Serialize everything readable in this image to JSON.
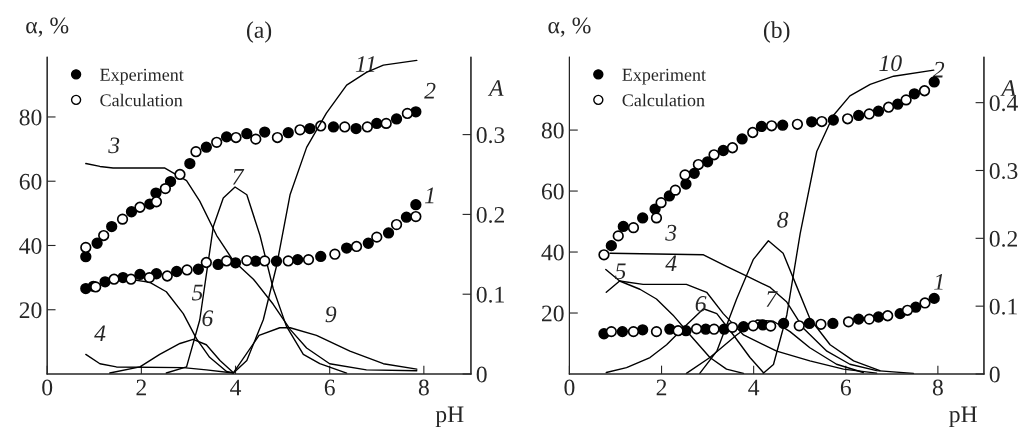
{
  "chart_data": [
    {
      "type": "line",
      "title": "(a)",
      "xlabel": "pH",
      "ylabel": "α, %",
      "y2label": "A",
      "xlim": [
        0,
        9
      ],
      "xticks": [
        0,
        2,
        4,
        6,
        8
      ],
      "ylim": [
        0,
        98.6
      ],
      "yticks": [
        20,
        40,
        60,
        80
      ],
      "y2lim": [
        0,
        0.397
      ],
      "y2ticks": [
        0,
        0.1,
        0.2,
        0.3
      ],
      "legend": "top left",
      "grid": false,
      "series": [
        {
          "type": "scatter",
          "marker": "circle",
          "name": "Experiment",
          "color": "#000000",
          "x": [
            0.82,
            1.06,
            1.37,
            1.79,
            2.18,
            2.31,
            2.62,
            3.03,
            3.38,
            3.81,
            4.24,
            4.62,
            5.12,
            5.58,
            6.08,
            6.56,
            7.0,
            7.42,
            7.83
          ],
          "values": [
            36.5,
            40.7,
            45.9,
            50.5,
            52.9,
            56.3,
            59.9,
            65.5,
            70.6,
            73.8,
            74.8,
            75.3,
            75.1,
            76.4,
            76.9,
            76.4,
            78.0,
            79.4,
            81.6
          ]
        },
        {
          "type": "scatter",
          "marker": "circle",
          "name": "Calculation",
          "color": "#ffffff",
          "x": [
            0.82,
            1.2,
            1.6,
            1.97,
            2.32,
            2.51,
            2.82,
            3.16,
            3.6,
            4.01,
            4.43,
            4.89,
            5.37,
            5.81,
            6.32,
            6.8,
            7.2,
            7.65
          ],
          "values": [
            39.4,
            43.1,
            48.2,
            51.9,
            53.6,
            57.7,
            62.1,
            69.2,
            72.1,
            73.6,
            73.1,
            73.6,
            76.0,
            77.2,
            76.9,
            76.9,
            78.0,
            81.1
          ]
        },
        {
          "type": "scatter",
          "marker": "circle",
          "color": "#000000",
          "x": [
            0.82,
            0.98,
            1.23,
            1.61,
            1.97,
            2.32,
            2.75,
            3.21,
            3.63,
            4.0,
            4.43,
            4.87,
            5.32,
            5.81,
            6.36,
            6.82,
            7.25,
            7.63,
            7.83
          ],
          "values": [
            26.6,
            27.3,
            28.7,
            30.0,
            31.0,
            31.2,
            31.9,
            32.6,
            34.1,
            34.6,
            35.1,
            35.1,
            35.6,
            36.6,
            39.2,
            40.7,
            43.9,
            48.8,
            52.7
          ]
        },
        {
          "type": "scatter",
          "marker": "circle",
          "color": "#ffffff",
          "x": [
            1.03,
            1.42,
            1.78,
            2.17,
            2.55,
            2.97,
            3.38,
            3.81,
            4.24,
            4.62,
            5.12,
            5.55,
            6.11,
            6.57,
            7.0,
            7.42,
            7.83
          ],
          "values": [
            27.1,
            29.5,
            29.5,
            30.0,
            30.5,
            32.4,
            34.7,
            35.2,
            35.3,
            35.2,
            35.2,
            35.6,
            37.3,
            39.7,
            42.6,
            46.5,
            49.0
          ]
        },
        {
          "color": "#000000",
          "x": [
            0.82,
            1.12,
            1.4,
            2.5,
            2.96,
            3.24,
            3.6,
            3.95,
            4.38,
            4.8,
            5.16,
            5.51,
            6.0,
            6.78,
            7.85
          ],
          "values": [
            65.5,
            64.6,
            64.1,
            64.1,
            60.2,
            53.8,
            43.1,
            35.3,
            29.5,
            21.7,
            13.9,
            8.1,
            3.2,
            1.3,
            1.0
          ]
        },
        {
          "color": "#000000",
          "x": [
            0.82,
            1.12,
            1.47,
            2.89,
            3.38,
            3.95
          ],
          "values": [
            6.1,
            3.2,
            2.2,
            2.0,
            1.3,
            0.3
          ]
        },
        {
          "color": "#000000",
          "x": [
            1.76,
            2.18,
            2.53,
            2.89,
            3.17,
            3.45,
            3.81,
            3.95
          ],
          "values": [
            29.5,
            28.5,
            25.6,
            18.8,
            11.0,
            5.2,
            0.8,
            0.3
          ]
        },
        {
          "color": "#000000",
          "x": [
            1.33,
            1.97,
            2.39,
            2.82,
            3.1,
            3.38,
            3.67,
            3.95
          ],
          "values": [
            0.3,
            2.2,
            6.1,
            9.5,
            10.8,
            9.1,
            4.2,
            0.5
          ]
        },
        {
          "color": "#000000",
          "x": [
            2.53,
            2.96,
            3.24,
            3.53,
            3.74,
            3.99,
            4.24,
            4.52,
            4.8,
            5.08,
            5.44,
            5.79,
            6.36
          ],
          "values": [
            0.3,
            2.2,
            16.8,
            46,
            54.8,
            58.2,
            55.8,
            43.1,
            26.6,
            14.9,
            6.1,
            3.2,
            0.3
          ]
        },
        {
          "color": "#000000",
          "x": [
            3.95,
            4.5,
            4.94,
            5.16,
            5.72,
            6.43,
            7.14,
            7.85
          ],
          "values": [
            0.3,
            12,
            14.4,
            14.4,
            12,
            7.1,
            3.2,
            1.5
          ]
        },
        {
          "color": "#000000",
          "axis": "y2",
          "x": [
            3.95,
            4.24,
            4.59,
            4.87,
            5.16,
            5.51,
            5.93,
            6.36,
            6.78,
            7.14,
            7.85
          ],
          "values": [
            0.001,
            0.017,
            0.068,
            0.135,
            0.225,
            0.284,
            0.327,
            0.362,
            0.378,
            0.387,
            0.393
          ]
        }
      ],
      "annotations": [
        {
          "text": "1",
          "x": 7.83,
          "y": 49.0
        },
        {
          "text": "2",
          "x": 7.83,
          "y": 81.6
        },
        {
          "text": "3",
          "x": 1.12,
          "y": 64.6
        },
        {
          "text": "4",
          "x": 0.82,
          "y": 6.1
        },
        {
          "text": "5",
          "x": 2.89,
          "y": 18.8
        },
        {
          "text": "6",
          "x": 3.1,
          "y": 10.8
        },
        {
          "text": "7",
          "x": 3.74,
          "y": 54.8
        },
        {
          "text": "9",
          "x": 5.72,
          "y": 12
        },
        {
          "text": "11",
          "x": 6.36,
          "y": 89.9
        }
      ]
    },
    {
      "type": "line",
      "title": "(b)",
      "xlabel": "pH",
      "ylabel": "α, %",
      "y2label": "A",
      "xlim": [
        0,
        9
      ],
      "xticks": [
        0,
        2,
        4,
        6,
        8
      ],
      "ylim": [
        0,
        103.9
      ],
      "yticks": [
        20,
        40,
        60,
        80
      ],
      "y2lim": [
        0,
        0.467
      ],
      "y2ticks": [
        0,
        0.1,
        0.2,
        0.3,
        0.4
      ],
      "legend": "top left",
      "grid": false,
      "series": [
        {
          "type": "scatter",
          "marker": "circle",
          "name": "Experiment",
          "color": "#000000",
          "x": [
            0.91,
            1.17,
            1.59,
            1.86,
            2.17,
            2.53,
            2.71,
            3.0,
            3.34,
            3.75,
            4.17,
            4.63,
            5.26,
            5.73,
            6.28,
            6.71,
            7.13,
            7.49,
            7.92
          ],
          "values": [
            42.1,
            48.4,
            51.2,
            54.1,
            58.4,
            62.3,
            65.8,
            69.6,
            73.3,
            77.1,
            81.2,
            81.6,
            82.7,
            83.3,
            84.8,
            86.2,
            88.5,
            91.9,
            95.8
          ]
        },
        {
          "type": "scatter",
          "marker": "circle",
          "name": "Calculation",
          "color": "#ffffff",
          "x": [
            0.75,
            1.06,
            1.39,
            1.89,
            1.99,
            2.3,
            2.51,
            2.8,
            3.14,
            3.54,
            3.98,
            4.39,
            4.95,
            5.48,
            6.04,
            6.51,
            6.93,
            7.31,
            7.71
          ],
          "values": [
            39.1,
            45.3,
            48.0,
            51.2,
            56.2,
            60.3,
            65.3,
            68.7,
            71.9,
            74.2,
            79.2,
            81.4,
            81.9,
            82.8,
            83.7,
            85.3,
            87.5,
            89.9,
            92.9
          ]
        },
        {
          "type": "scatter",
          "marker": "circle",
          "color": "#000000",
          "x": [
            0.75,
            1.15,
            1.59,
            2.18,
            2.53,
            2.96,
            3.36,
            3.78,
            4.2,
            4.65,
            5.21,
            5.72,
            6.28,
            6.71,
            7.18,
            7.52,
            7.92
          ],
          "values": [
            13.2,
            13.9,
            14.5,
            14.7,
            14.2,
            14.7,
            14.7,
            15.5,
            16.1,
            16.6,
            16.6,
            16.6,
            18.0,
            18.7,
            19.8,
            21.9,
            24.8
          ]
        },
        {
          "type": "scatter",
          "marker": "circle",
          "color": "#ffffff",
          "x": [
            0.91,
            1.39,
            1.89,
            2.36,
            2.76,
            3.14,
            3.54,
            3.99,
            4.37,
            4.99,
            5.46,
            6.06,
            6.51,
            6.91,
            7.34,
            7.72
          ],
          "values": [
            13.9,
            13.9,
            13.9,
            14.2,
            14.8,
            14.7,
            15.3,
            15.8,
            15.7,
            15.8,
            16.3,
            17.1,
            18.0,
            19.1,
            20.9,
            23.3
          ]
        },
        {
          "color": "#000000",
          "x": [
            0.88,
            2.91,
            3.41,
            3.92,
            4.36,
            4.72,
            5.08,
            5.59,
            6.09,
            6.67,
            7.47
          ],
          "values": [
            39.6,
            39.1,
            35.3,
            31.6,
            28.4,
            23.6,
            15.0,
            7.5,
            3.2,
            1.1,
            0.2
          ]
        },
        {
          "color": "#000000",
          "x": [
            0.8,
            1.09,
            1.6,
            2.54,
            2.98,
            3.34,
            3.78,
            4.5,
            5.22,
            5.95,
            6.67
          ],
          "values": [
            26.8,
            30.5,
            29.4,
            29.4,
            26.8,
            19.8,
            12.8,
            7.5,
            4.3,
            1.6,
            0.3
          ]
        },
        {
          "color": "#000000",
          "x": [
            0.79,
            1.09,
            1.53,
            1.89,
            2.25,
            2.62,
            3.05,
            3.41,
            3.78
          ],
          "values": [
            34.3,
            30.5,
            27.8,
            24.6,
            19.3,
            12.8,
            5.4,
            1.6,
            0.2
          ]
        },
        {
          "color": "#000000",
          "x": [
            0.8,
            1.24,
            1.75,
            2.11,
            2.54,
            2.91,
            3.2,
            3.56,
            3.92,
            4.21
          ],
          "values": [
            0.5,
            2.1,
            5.4,
            9.6,
            16.1,
            21.4,
            19.8,
            12.8,
            5.4,
            0.5
          ]
        },
        {
          "color": "#000000",
          "x": [
            2.54,
            3.05,
            3.63,
            4.07,
            4.43,
            4.79,
            5.22,
            5.8,
            6.38
          ],
          "values": [
            0.2,
            5.4,
            12.8,
            17.7,
            17.3,
            13.9,
            8.6,
            3.2,
            0.5
          ]
        },
        {
          "color": "#000000",
          "x": [
            2.83,
            3.2,
            3.63,
            3.99,
            4.32,
            4.64,
            4.93,
            5.22,
            5.66,
            6.17,
            6.74
          ],
          "values": [
            0.2,
            7.5,
            24.6,
            37.5,
            43.7,
            39.6,
            28.9,
            18.2,
            9.6,
            4.3,
            1.1
          ]
        },
        {
          "color": "#000000",
          "axis": "y2",
          "x": [
            4.21,
            4.43,
            4.72,
            5.01,
            5.37,
            5.73,
            6.09,
            6.53,
            7.04,
            7.91
          ],
          "values": [
            0.001,
            0.014,
            0.087,
            0.207,
            0.328,
            0.381,
            0.41,
            0.427,
            0.439,
            0.448
          ]
        }
      ],
      "annotations": [
        {
          "text": "1",
          "x": 7.72,
          "y": 23.3
        },
        {
          "text": "2",
          "x": 7.71,
          "y": 92.9
        },
        {
          "text": "3",
          "x": 1.9,
          "y": 39.4
        },
        {
          "text": "4",
          "x": 1.9,
          "y": 29.4
        },
        {
          "text": "5",
          "x": 0.8,
          "y": 26.8
        },
        {
          "text": "6",
          "x": 2.54,
          "y": 16.1
        },
        {
          "text": "7",
          "x": 4.07,
          "y": 17.7
        },
        {
          "text": "8",
          "x": 4.32,
          "y": 43.7
        },
        {
          "text": "10",
          "x": 6.53,
          "y": 95.0
        }
      ]
    }
  ]
}
